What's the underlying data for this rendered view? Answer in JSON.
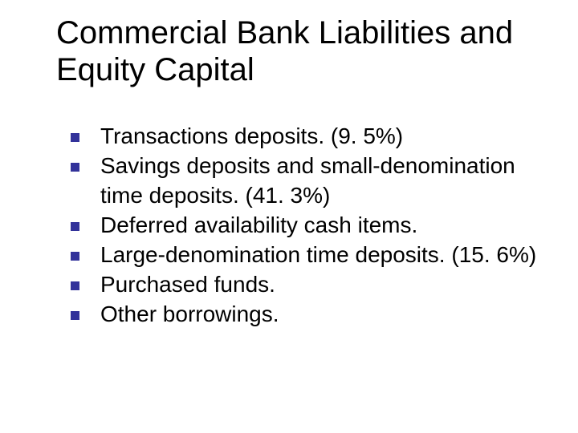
{
  "title": "Commercial Bank Liabilities and Equity Capital",
  "title_fontsize": 40,
  "title_color": "#000000",
  "bullet_color": "#32329a",
  "bullet_size": 11,
  "body_fontsize": 28,
  "body_color": "#000000",
  "background_color": "#ffffff",
  "bullets": [
    {
      "text": "Transactions deposits. (9. 5%)"
    },
    {
      "text": "Savings deposits and small-denomination time deposits. (41. 3%)"
    },
    {
      "text": "Deferred availability cash items."
    },
    {
      "text": "Large-denomination time deposits. (15. 6%)"
    },
    {
      "text": "Purchased funds."
    },
    {
      "text": "Other borrowings."
    }
  ]
}
